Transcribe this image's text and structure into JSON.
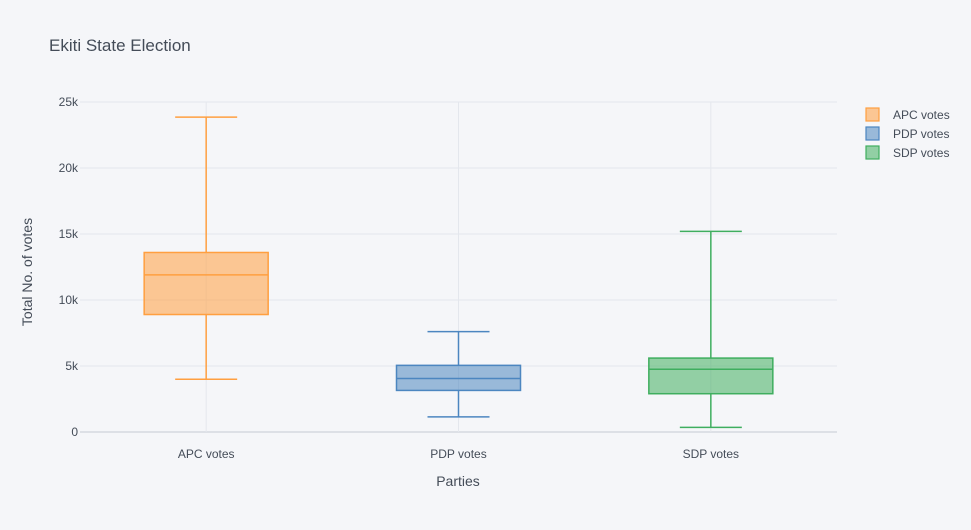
{
  "chart_data": {
    "type": "box",
    "title": "Ekiti State Election",
    "xlabel": "Parties",
    "ylabel": "Total No. of votes",
    "ylim": [
      0,
      25000
    ],
    "yticks": [
      {
        "value": 0,
        "label": "0"
      },
      {
        "value": 5000,
        "label": "5k"
      },
      {
        "value": 10000,
        "label": "10k"
      },
      {
        "value": 15000,
        "label": "15k"
      },
      {
        "value": 20000,
        "label": "20k"
      },
      {
        "value": 25000,
        "label": "25k"
      }
    ],
    "grid": true,
    "legend_position": "top-right",
    "categories": [
      "APC votes",
      "PDP votes",
      "SDP votes"
    ],
    "series": [
      {
        "name": "APC votes",
        "color": "#ff9f40",
        "min": 4000,
        "q1": 8900,
        "median": 11900,
        "q3": 13600,
        "max": 23850
      },
      {
        "name": "PDP votes",
        "color": "#4c86c0",
        "min": 1150,
        "q1": 3150,
        "median": 4050,
        "q3": 5050,
        "max": 7600
      },
      {
        "name": "SDP votes",
        "color": "#3fae5f",
        "min": 350,
        "q1": 2900,
        "median": 4750,
        "q3": 5600,
        "max": 15200
      }
    ]
  }
}
